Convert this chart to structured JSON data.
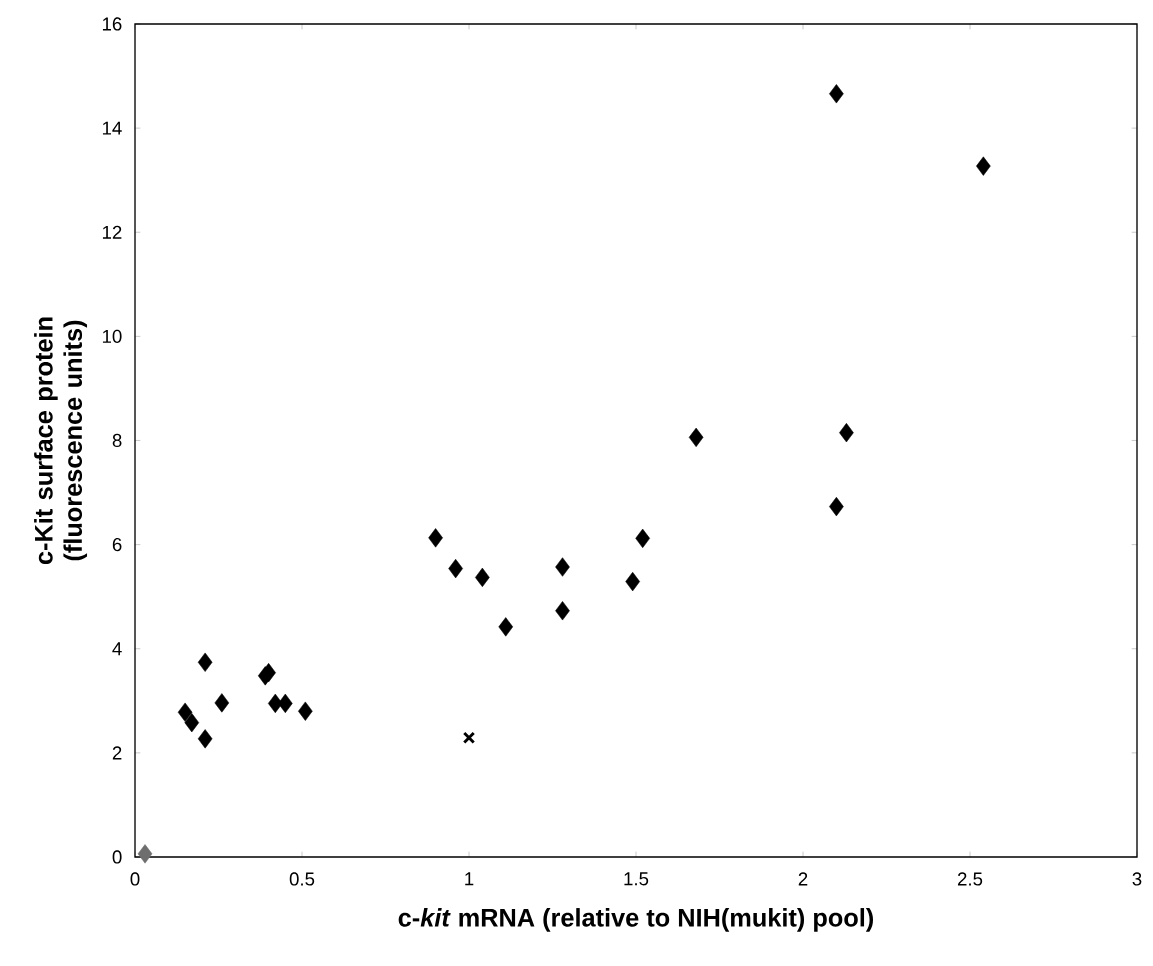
{
  "chart_data": {
    "type": "scatter",
    "xlabel": "c-*kit* mRNA (relative to NIH(mukit) pool)",
    "ylabel": "c-Kit surface protein (fluorescence units)",
    "xlim": [
      0,
      3
    ],
    "ylim": [
      0,
      16
    ],
    "xticks": [
      0,
      0.5,
      1,
      1.5,
      2,
      2.5,
      3
    ],
    "yticks": [
      0,
      2,
      4,
      6,
      8,
      10,
      12,
      14,
      16
    ],
    "grid": false,
    "series": [
      {
        "color": "#000000",
        "marker": "diamond",
        "x": [
          0.21,
          0.15,
          0.17,
          0.21,
          0.26,
          0.39,
          0.4,
          0.42,
          0.45,
          0.51,
          0.9,
          0.96,
          1.04,
          1.11,
          1.28,
          1.28,
          1.49,
          1.52,
          1.68,
          2.1,
          2.54,
          2.13,
          2.1
        ],
        "values": [
          3.74,
          2.78,
          2.58,
          2.27,
          2.96,
          3.48,
          3.54,
          2.95,
          2.95,
          2.8,
          6.13,
          5.54,
          5.37,
          4.42,
          5.57,
          4.73,
          5.29,
          6.12,
          8.06,
          14.66,
          13.27,
          8.15,
          6.73
        ]
      },
      {
        "color": "#6e6e6e",
        "marker": "diamond",
        "x": [
          0.03
        ],
        "values": [
          0.06
        ]
      },
      {
        "color": "#000000",
        "marker": "cross",
        "x": [
          1.0
        ],
        "values": [
          2.29
        ]
      }
    ]
  }
}
